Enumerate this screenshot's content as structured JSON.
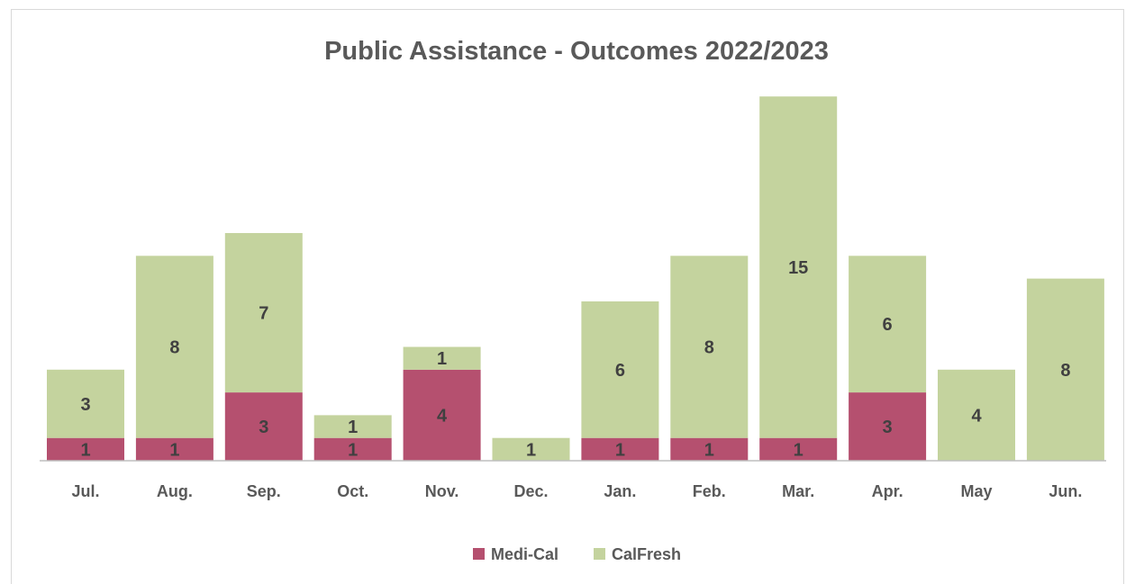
{
  "chart_data": {
    "type": "bar",
    "stacked": true,
    "title": "Public Assistance - Outcomes 2022/2023",
    "xlabel": "",
    "ylabel": "",
    "categories": [
      "Jul.",
      "Aug.",
      "Sep.",
      "Oct.",
      "Nov.",
      "Dec.",
      "Jan.",
      "Feb.",
      "Mar.",
      "Apr.",
      "May",
      "Jun."
    ],
    "series": [
      {
        "name": "Medi-Cal",
        "color": "#b5506f",
        "values": [
          1,
          1,
          3,
          1,
          4,
          0,
          1,
          1,
          1,
          3,
          0,
          0
        ]
      },
      {
        "name": "CalFresh",
        "color": "#c4d39e",
        "values": [
          3,
          8,
          7,
          1,
          1,
          1,
          6,
          8,
          15,
          6,
          4,
          8
        ]
      }
    ],
    "ylim": [
      0,
      16
    ],
    "grid": false,
    "legend": "bottom"
  }
}
